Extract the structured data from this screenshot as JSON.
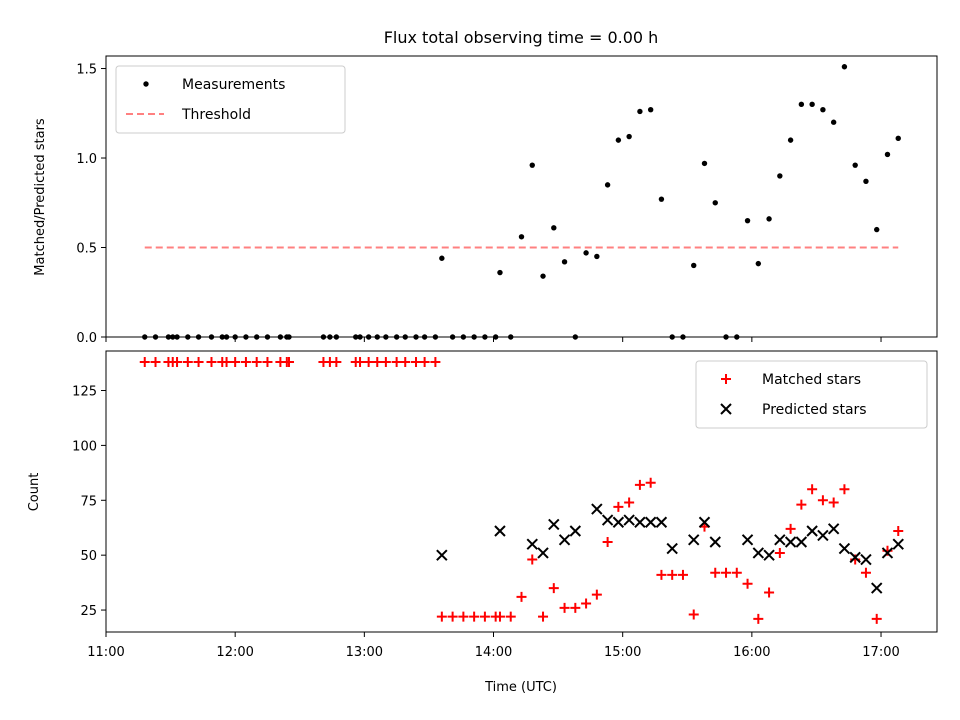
{
  "chart_data": [
    {
      "type": "scatter",
      "title": "Flux total observing time = 0.00 h",
      "xlabel": "",
      "ylabel": "Matched/Predicted stars",
      "xlim": [
        "11:00",
        "17:26"
      ],
      "ylim": [
        0,
        1.57
      ],
      "yticks": [
        0.0,
        0.5,
        1.0,
        1.5
      ],
      "ytick_labels": [
        "0.0",
        "0.5",
        "1.0",
        "1.5"
      ],
      "xticks": [
        "11:00",
        "12:00",
        "13:00",
        "14:00",
        "15:00",
        "16:00",
        "17:00"
      ],
      "show_xtick_labels": false,
      "grid": false,
      "legend": {
        "position": "upper left",
        "entries": [
          "Measurements",
          "Threshold"
        ]
      },
      "series": [
        {
          "name": "Measurements",
          "kind": "points",
          "color": "#000000",
          "x": [
            "11:18",
            "11:23",
            "11:29",
            "11:31",
            "11:33",
            "11:38",
            "11:43",
            "11:49",
            "11:54",
            "11:56",
            "12:00",
            "12:05",
            "12:10",
            "12:15",
            "12:21",
            "12:24",
            "12:25",
            "12:41",
            "12:44",
            "12:47",
            "12:56",
            "12:58",
            "13:02",
            "13:06",
            "13:10",
            "13:15",
            "13:19",
            "13:24",
            "13:28",
            "13:33",
            "13:36",
            "13:41",
            "13:46",
            "13:51",
            "13:56",
            "14:01",
            "14:03",
            "14:08",
            "14:13",
            "14:18",
            "14:23",
            "14:28",
            "14:33",
            "14:38",
            "14:43",
            "14:48",
            "14:53",
            "14:58",
            "15:03",
            "15:08",
            "15:13",
            "15:18",
            "15:23",
            "15:28",
            "15:33",
            "15:38",
            "15:43",
            "15:48",
            "15:53",
            "15:58",
            "16:03",
            "16:08",
            "16:13",
            "16:18",
            "16:23",
            "16:28",
            "16:33",
            "16:38",
            "16:43",
            "16:48",
            "16:53",
            "16:58",
            "17:03",
            "17:08"
          ],
          "y": [
            0,
            0,
            0,
            0,
            0,
            0,
            0,
            0,
            0,
            0,
            0,
            0,
            0,
            0,
            0,
            0,
            0,
            0,
            0,
            0,
            0,
            0,
            0,
            0,
            0,
            0,
            0,
            0,
            0,
            0,
            0.44,
            0,
            0,
            0,
            0,
            0,
            0.36,
            0,
            0.56,
            0.96,
            0.34,
            0.61,
            0.42,
            0,
            0.47,
            0.45,
            0.85,
            1.1,
            1.12,
            1.26,
            1.27,
            0.77,
            0,
            0,
            0.4,
            0.97,
            0.75,
            0,
            0,
            0.65,
            0.41,
            0.66,
            0.9,
            1.1,
            1.3,
            1.3,
            1.27,
            1.2,
            1.51,
            0.96,
            0.87,
            0.6,
            1.02,
            1.11
          ]
        },
        {
          "name": "Threshold",
          "kind": "dashed-line",
          "color": "#ff8080",
          "x": [
            "11:18",
            "17:08"
          ],
          "y": [
            0.5,
            0.5
          ]
        }
      ]
    },
    {
      "type": "scatter",
      "title": "",
      "xlabel": "Time (UTC)",
      "ylabel": "Count",
      "xlim": [
        "11:00",
        "17:26"
      ],
      "ylim": [
        15,
        143
      ],
      "yticks": [
        25,
        50,
        75,
        100,
        125
      ],
      "ytick_labels": [
        "25",
        "50",
        "75",
        "100",
        "125"
      ],
      "xticks": [
        "11:00",
        "12:00",
        "13:00",
        "14:00",
        "15:00",
        "16:00",
        "17:00"
      ],
      "xtick_labels": [
        "11:00",
        "12:00",
        "13:00",
        "14:00",
        "15:00",
        "16:00",
        "17:00"
      ],
      "grid": false,
      "legend": {
        "position": "upper right",
        "entries": [
          "Matched stars",
          "Predicted stars"
        ]
      },
      "series": [
        {
          "name": "Matched stars",
          "kind": "plus",
          "color": "#ff0000",
          "x": [
            "11:18",
            "11:23",
            "11:29",
            "11:31",
            "11:33",
            "11:38",
            "11:43",
            "11:49",
            "11:54",
            "11:56",
            "12:00",
            "12:05",
            "12:10",
            "12:15",
            "12:21",
            "12:24",
            "12:25",
            "12:41",
            "12:44",
            "12:47",
            "12:56",
            "12:58",
            "13:02",
            "13:06",
            "13:10",
            "13:15",
            "13:19",
            "13:24",
            "13:28",
            "13:33",
            "13:36",
            "13:41",
            "13:46",
            "13:51",
            "13:56",
            "14:01",
            "14:03",
            "14:08",
            "14:13",
            "14:18",
            "14:23",
            "14:28",
            "14:33",
            "14:38",
            "14:43",
            "14:48",
            "14:53",
            "14:58",
            "15:03",
            "15:08",
            "15:13",
            "15:18",
            "15:23",
            "15:28",
            "15:33",
            "15:38",
            "15:43",
            "15:48",
            "15:53",
            "15:58",
            "16:03",
            "16:08",
            "16:13",
            "16:18",
            "16:23",
            "16:28",
            "16:33",
            "16:38",
            "16:43",
            "16:48",
            "16:53",
            "16:58",
            "17:03",
            "17:08"
          ],
          "y": [
            138,
            138,
            138,
            138,
            138,
            138,
            138,
            138,
            138,
            138,
            138,
            138,
            138,
            138,
            138,
            138,
            138,
            138,
            138,
            138,
            138,
            138,
            138,
            138,
            138,
            138,
            138,
            138,
            138,
            138,
            22,
            22,
            22,
            22,
            22,
            22,
            22,
            22,
            31,
            48,
            22,
            35,
            26,
            26,
            28,
            32,
            56,
            72,
            74,
            82,
            83,
            41,
            41,
            41,
            23,
            63,
            42,
            42,
            42,
            37,
            21,
            33,
            51,
            62,
            73,
            80,
            75,
            74,
            80,
            48,
            42,
            21,
            52,
            61
          ]
        },
        {
          "name": "Predicted stars",
          "kind": "x",
          "color": "#000000",
          "x": [
            "13:36",
            "14:03",
            "14:18",
            "14:23",
            "14:28",
            "14:33",
            "14:38",
            "14:48",
            "14:53",
            "14:58",
            "15:03",
            "15:08",
            "15:13",
            "15:18",
            "15:23",
            "15:33",
            "15:38",
            "15:43",
            "15:58",
            "16:03",
            "16:08",
            "16:13",
            "16:18",
            "16:23",
            "16:28",
            "16:33",
            "16:38",
            "16:43",
            "16:48",
            "16:53",
            "16:58",
            "17:03",
            "17:08"
          ],
          "y": [
            50,
            61,
            55,
            51,
            64,
            57,
            61,
            71,
            66,
            65,
            66,
            65,
            65,
            65,
            53,
            57,
            65,
            56,
            57,
            51,
            50,
            57,
            56,
            56,
            61,
            59,
            62,
            53,
            49,
            48,
            35,
            51,
            55
          ]
        }
      ]
    }
  ]
}
